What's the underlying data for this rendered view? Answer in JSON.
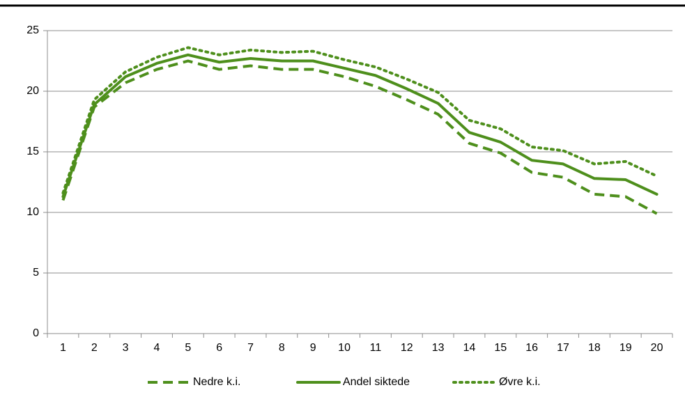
{
  "chart_data": {
    "type": "line",
    "categories": [
      "1",
      "2",
      "3",
      "4",
      "5",
      "6",
      "7",
      "8",
      "9",
      "10",
      "11",
      "12",
      "13",
      "14",
      "15",
      "16",
      "17",
      "18",
      "19",
      "20"
    ],
    "series": [
      {
        "name": "Nedre k.i.",
        "color": "#4e8f1c",
        "style": "dashed",
        "values": [
          11.0,
          18.7,
          20.7,
          21.8,
          22.5,
          21.8,
          22.1,
          21.8,
          21.8,
          21.2,
          20.4,
          19.3,
          18.1,
          15.7,
          14.9,
          13.3,
          12.9,
          11.5,
          11.3,
          9.9
        ]
      },
      {
        "name": "Andel siktede",
        "color": "#4e8f1c",
        "style": "solid",
        "values": [
          11.3,
          18.9,
          21.2,
          22.3,
          23.0,
          22.4,
          22.7,
          22.5,
          22.5,
          21.9,
          21.3,
          20.2,
          19.0,
          16.6,
          15.8,
          14.3,
          14.0,
          12.8,
          12.7,
          11.5
        ]
      },
      {
        "name": "Øvre k.i.",
        "color": "#4e8f1c",
        "style": "dotted",
        "values": [
          11.6,
          19.3,
          21.6,
          22.8,
          23.6,
          23.0,
          23.4,
          23.2,
          23.3,
          22.6,
          22.0,
          21.0,
          19.9,
          17.6,
          16.9,
          15.4,
          15.1,
          14.0,
          14.2,
          13.0
        ]
      }
    ],
    "ylim": [
      0,
      25
    ],
    "yticks": [
      0,
      5,
      10,
      15,
      20,
      25
    ],
    "grid": true,
    "legend": "bottom"
  }
}
